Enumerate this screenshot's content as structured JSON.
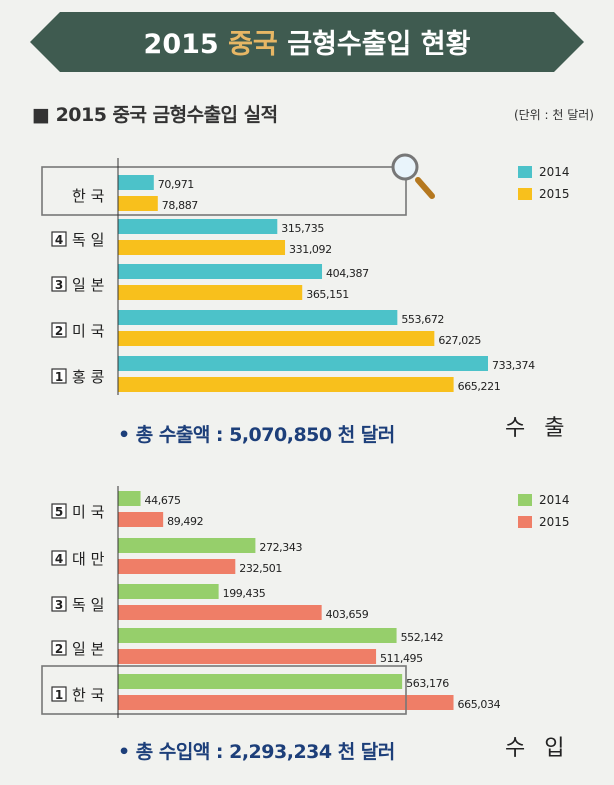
{
  "header": {
    "title_year": "2015",
    "title_country": "중국",
    "title_rest": "금형수출입 현황"
  },
  "subtitle": "■ 2015 중국 금형수출입 실적",
  "unit": "(단위 : 천 달러)",
  "colors": {
    "banner": "#3f5b50",
    "banner_country": "#e7b765",
    "export_2014": "#4cc2c9",
    "export_2015": "#f8c01c",
    "import_2014": "#96cf6b",
    "import_2015": "#ef7e67",
    "total_text": "#1d3f7a"
  },
  "chart_data": [
    {
      "type": "bar",
      "orientation": "horizontal",
      "corner_label": "수 출",
      "categories": [
        "한 국",
        "4 독 일",
        "3 일 본",
        "2 미 국",
        "1 홍 콩"
      ],
      "category_names": [
        "한 국",
        "독 일",
        "일 본",
        "미 국",
        "홍 콩"
      ],
      "category_ranks": [
        "",
        "4",
        "3",
        "2",
        "1"
      ],
      "highlight_category": "한 국",
      "series": [
        {
          "name": "2014",
          "values": [
            70971,
            315735,
            404387,
            553672,
            733374
          ],
          "labels": [
            "70,971",
            "315,735",
            "404,387",
            "553,672",
            "733,374"
          ]
        },
        {
          "name": "2015",
          "values": [
            78887,
            331092,
            365151,
            627025,
            665221
          ],
          "labels": [
            "78,887",
            "331,092",
            "365,151",
            "627,025",
            "665,221"
          ]
        }
      ],
      "total": "• 총 수출액 : 5,070,850 천 달러",
      "legend_position": "top-right",
      "grid": false
    },
    {
      "type": "bar",
      "orientation": "horizontal",
      "corner_label": "수 입",
      "categories": [
        "5 미 국",
        "4 대 만",
        "3 독 일",
        "2 일 본",
        "1 한 국"
      ],
      "category_names": [
        "미 국",
        "대 만",
        "독 일",
        "일 본",
        "한 국"
      ],
      "category_ranks": [
        "5",
        "4",
        "3",
        "2",
        "1"
      ],
      "highlight_category": "1 한 국",
      "series": [
        {
          "name": "2014",
          "values": [
            44675,
            272343,
            199435,
            552142,
            563176
          ],
          "labels": [
            "44,675",
            "272,343",
            "199,435",
            "552,142",
            "563,176"
          ]
        },
        {
          "name": "2015",
          "values": [
            89492,
            232501,
            403659,
            511495,
            665034
          ],
          "labels": [
            "89,492",
            "232,501",
            "403,659",
            "511,495",
            "665,034"
          ]
        }
      ],
      "total": "• 총 수입액 : 2,293,234 천 달러",
      "legend_position": "top-right",
      "grid": false
    }
  ]
}
